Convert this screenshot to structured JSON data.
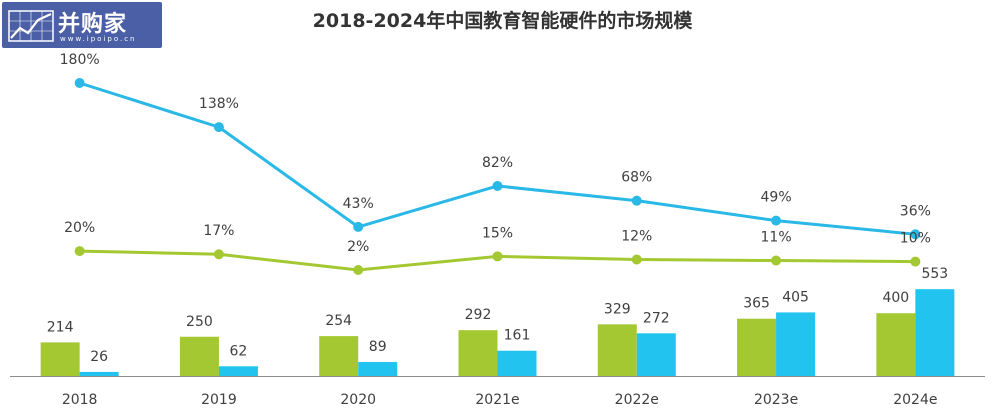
{
  "logo": {
    "name": "并购家",
    "url": "www.ipoipo.cn"
  },
  "chart_data": {
    "type": "bar+line",
    "title": "2018-2024年中国教育智能硬件的市场规模",
    "categories": [
      "2018",
      "2019",
      "2020",
      "2021e",
      "2022e",
      "2023e",
      "2024e"
    ],
    "bar_series": [
      {
        "values": [
          214,
          250,
          254,
          292,
          329,
          365,
          400
        ],
        "color": "#a4c832"
      },
      {
        "values": [
          26,
          62,
          89,
          161,
          272,
          405,
          553
        ],
        "color": "#22c4ef"
      }
    ],
    "line_series": [
      {
        "values": [
          180,
          138,
          43,
          82,
          68,
          49,
          36
        ],
        "labels": [
          "180%",
          "138%",
          "43%",
          "82%",
          "68%",
          "49%",
          "36%"
        ],
        "color": "#2ab8e6"
      },
      {
        "values": [
          20,
          17,
          2,
          15,
          12,
          11,
          10
        ],
        "labels": [
          "20%",
          "17%",
          "2%",
          "15%",
          "12%",
          "11%",
          "10%"
        ],
        "color": "#a4c832"
      }
    ]
  }
}
